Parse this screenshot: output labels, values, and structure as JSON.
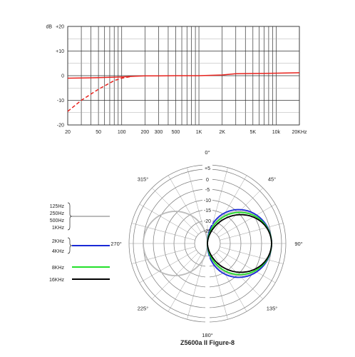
{
  "freq_response": {
    "y_unit": "dB",
    "y_ticks": [
      {
        "value": 20,
        "label": "+20"
      },
      {
        "value": 10,
        "label": "+10"
      },
      {
        "value": 0,
        "label": "0"
      },
      {
        "value": -10,
        "label": "-10"
      },
      {
        "value": -20,
        "label": "-20"
      }
    ],
    "x_ticks": [
      {
        "value": 20,
        "label": "20"
      },
      {
        "value": 50,
        "label": "50"
      },
      {
        "value": 100,
        "label": "100"
      },
      {
        "value": 200,
        "label": "200"
      },
      {
        "value": 300,
        "label": "300"
      },
      {
        "value": 500,
        "label": "500"
      },
      {
        "value": 1000,
        "label": "1K"
      },
      {
        "value": 2000,
        "label": "2K"
      },
      {
        "value": 5000,
        "label": "5K"
      },
      {
        "value": 10000,
        "label": "10k"
      },
      {
        "value": 20000,
        "label": "20KHz"
      }
    ],
    "x_gridlines": [
      20,
      30,
      40,
      50,
      60,
      70,
      80,
      90,
      100,
      200,
      300,
      400,
      500,
      600,
      700,
      800,
      900,
      1000,
      2000,
      3000,
      4000,
      5000,
      6000,
      7000,
      8000,
      9000,
      10000,
      20000
    ],
    "line_color": "#e8231e"
  },
  "polar": {
    "title": "Z5600a II Figure-8",
    "angle_labels": [
      {
        "deg": 0,
        "label": "0°"
      },
      {
        "deg": 45,
        "label": "45°"
      },
      {
        "deg": 90,
        "label": "90°"
      },
      {
        "deg": 135,
        "label": "135°"
      },
      {
        "deg": 180,
        "label": "180°"
      },
      {
        "deg": 225,
        "label": "225°"
      },
      {
        "deg": 270,
        "label": "270°"
      },
      {
        "deg": 315,
        "label": "315°"
      }
    ],
    "ring_labels": [
      "+5",
      "0",
      "-5",
      "-10",
      "-15",
      "-20",
      "-25"
    ],
    "legend": [
      {
        "lines": [
          "125Hz",
          "250Hz",
          "500Hz",
          "1KHz"
        ],
        "color": "#bbbbbb",
        "brace": true
      },
      {
        "lines": [
          "2KHz",
          "4KHz"
        ],
        "color": "#1a2ad6",
        "brace": true
      },
      {
        "lines": [
          "8KHz"
        ],
        "color": "#22e02a",
        "brace": false
      },
      {
        "lines": [
          "16KHz"
        ],
        "color": "#000000",
        "brace": false
      }
    ]
  },
  "chart_data": [
    {
      "type": "line",
      "xscale": "log",
      "xlim": [
        20,
        20000
      ],
      "ylim": [
        -20,
        20
      ],
      "ylabel": "dB",
      "series": [
        {
          "style": "solid",
          "color": "#e8231e",
          "x": [
            20,
            50,
            100,
            150,
            200,
            300,
            500,
            1000,
            2000,
            3000,
            5000,
            10000,
            20000
          ],
          "y": [
            -1,
            -0.8,
            -0.5,
            -0.2,
            -0.1,
            -0.1,
            0,
            0,
            0.3,
            0.8,
            0.9,
            1.0,
            1.2
          ]
        },
        {
          "style": "dashed",
          "color": "#e8231e",
          "x": [
            20,
            30,
            50,
            80,
            100,
            130
          ],
          "y": [
            -14.5,
            -10,
            -5.5,
            -2,
            -1,
            -0.4
          ]
        }
      ]
    },
    {
      "type": "polar",
      "title": "Z5600a II Figure-8",
      "rlim": [
        -30,
        5
      ],
      "rticks": [
        5,
        0,
        -5,
        -10,
        -15,
        -20,
        -25
      ],
      "series": [
        {
          "name": "125Hz 250Hz 500Hz 1KHz",
          "color": "#bbbbbb",
          "pattern": "figure-8",
          "max_db": 0
        },
        {
          "name": "2KHz 4KHz",
          "color": "#1a2ad6",
          "pattern": "front lobe",
          "max_db": 0
        },
        {
          "name": "8KHz",
          "color": "#22e02a",
          "pattern": "front lobe",
          "max_db": 0
        },
        {
          "name": "16KHz",
          "color": "#000000",
          "pattern": "front lobe",
          "max_db": 0
        }
      ]
    }
  ]
}
